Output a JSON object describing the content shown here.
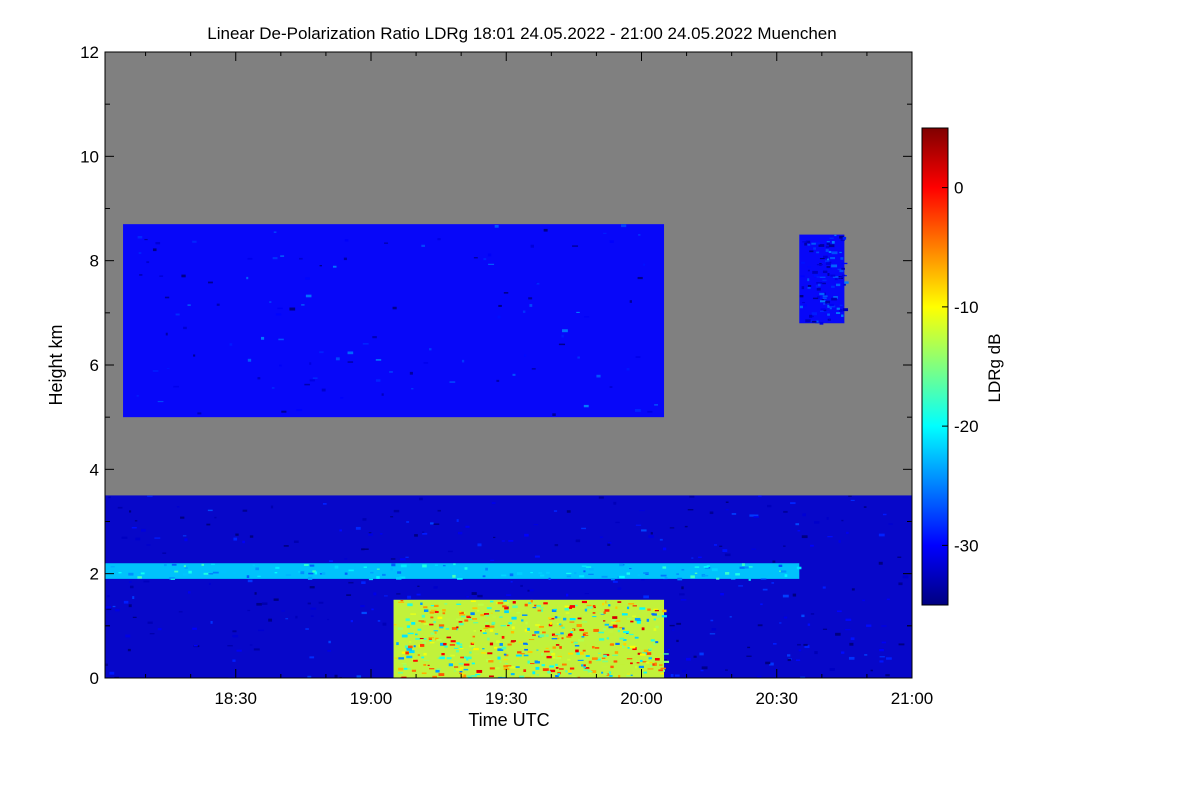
{
  "chart_data": {
    "type": "heatmap",
    "title": "Linear De-Polarization Ratio LDRg   18:01 24.05.2022 - 21:00 24.05.2022 Muenchen",
    "xlabel": "Time UTC",
    "ylabel": "Height km",
    "colorbar_label": "LDRg dB",
    "xlim": [
      "18:01",
      "21:00"
    ],
    "ylim": [
      0,
      12
    ],
    "x_ticks": [
      "18:30",
      "19:00",
      "19:30",
      "20:00",
      "20:30",
      "21:00"
    ],
    "y_ticks": [
      0,
      2,
      4,
      6,
      8,
      10,
      12
    ],
    "colorbar_ticks": [
      0,
      -10,
      -20,
      -30
    ],
    "colorbar_range": [
      -35,
      5
    ],
    "background_color": "#808080",
    "colormap": [
      "#000080",
      "#0000ff",
      "#0080ff",
      "#00ffff",
      "#80ff80",
      "#ffff00",
      "#ff8000",
      "#ff0000",
      "#800000"
    ],
    "features": [
      {
        "name": "lower aerosol/cloud layer",
        "time": [
          "18:01",
          "21:00"
        ],
        "height_km": [
          0,
          3.5
        ],
        "ldr_db": -32
      },
      {
        "name": "bright layer",
        "time": [
          "18:01",
          "20:35"
        ],
        "height_km": [
          1.9,
          2.2
        ],
        "ldr_db": -22
      },
      {
        "name": "mid-level cloud",
        "time": [
          "18:05",
          "20:05"
        ],
        "height_km": [
          5.0,
          8.7
        ],
        "ldr_db": -30
      },
      {
        "name": "upper cloud patch",
        "time": [
          "20:35",
          "20:45"
        ],
        "height_km": [
          6.8,
          8.5
        ],
        "ldr_db": -30
      },
      {
        "name": "near-surface mixed returns",
        "time": [
          "19:05",
          "20:05"
        ],
        "height_km": [
          0,
          1.5
        ],
        "ldr_db": -12
      }
    ]
  }
}
